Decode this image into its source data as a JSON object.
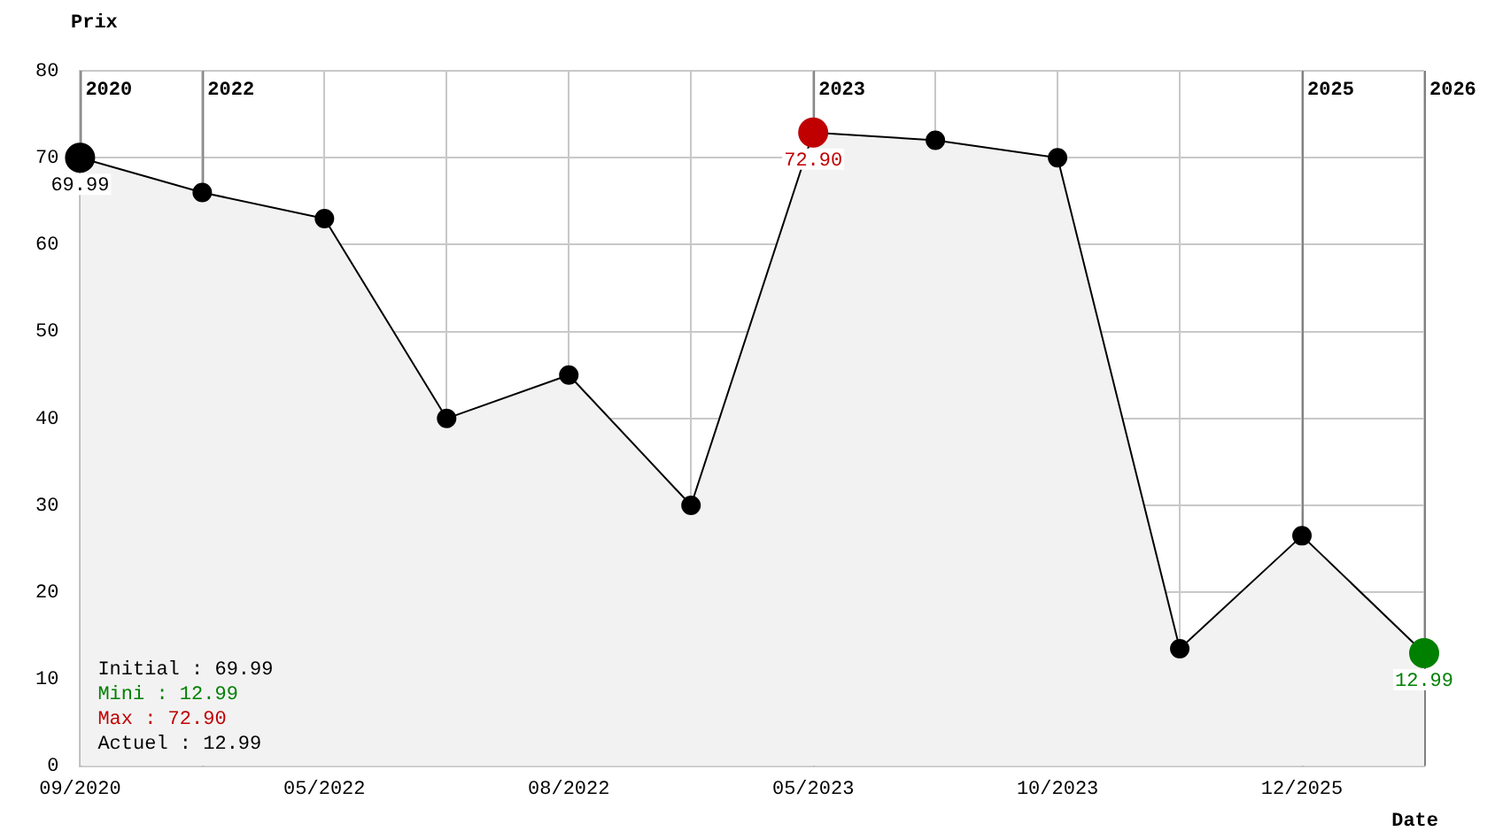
{
  "chart_data": {
    "type": "area",
    "xlabel": "Date",
    "ylabel": "Prix",
    "categories": [
      "09/2020",
      null,
      "05/2022",
      null,
      "08/2022",
      null,
      "05/2023",
      null,
      "10/2023",
      null,
      "12/2025",
      null
    ],
    "series": [
      {
        "type": "area",
        "color": "#000000",
        "colors": [
          "#000000",
          "#000000",
          "#000000",
          "#000000",
          "#000000",
          "#000000",
          "#c00000",
          "#000000",
          "#000000",
          "#000000",
          "#000000",
          "#008000"
        ],
        "values": [
          69.99,
          66,
          63,
          40,
          45,
          30,
          72.9,
          72,
          70,
          13.5,
          26.5,
          12.99
        ],
        "value_labels": [
          "69.99",
          null,
          null,
          null,
          null,
          null,
          "72.90",
          null,
          null,
          null,
          null,
          "12.99"
        ]
      }
    ],
    "ylim": [
      0,
      80
    ],
    "yticks": [
      0,
      10,
      20,
      30,
      40,
      50,
      60,
      70,
      80
    ],
    "grid": true,
    "legend": false,
    "marker": "circle",
    "line_style": "solid",
    "annotations": [
      "Initial : 69.99",
      "Mini : 12.99",
      "Max : 72.90",
      "Actuel : 12.99",
      "2020",
      "2022",
      "2023",
      "2025",
      "2026"
    ]
  }
}
